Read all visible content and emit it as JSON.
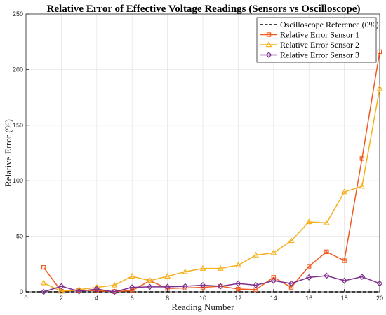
{
  "chart_data": {
    "type": "line",
    "title": "Relative Error of Effective Voltage Readings (Sensors vs Oscilloscope)",
    "xlabel": "Reading Number",
    "ylabel": "Relative Error (%)",
    "xlim": [
      0,
      20
    ],
    "ylim": [
      0,
      250
    ],
    "xticks": [
      0,
      2,
      4,
      6,
      8,
      10,
      12,
      14,
      16,
      18,
      20
    ],
    "yticks": [
      0,
      50,
      100,
      150,
      200,
      250
    ],
    "grid": true,
    "legend_position": "top-right",
    "x": [
      1,
      2,
      3,
      4,
      5,
      6,
      7,
      8,
      9,
      10,
      11,
      12,
      13,
      14,
      15,
      16,
      17,
      18,
      19,
      20
    ],
    "series": [
      {
        "name": "Oscilloscope Reference (0%)",
        "color": "#000000",
        "style": "dashed",
        "marker": "none",
        "x": [
          0,
          20
        ],
        "values": [
          0,
          0
        ]
      },
      {
        "name": "Relative Error Sensor 1",
        "color": "#f05a1e",
        "style": "solid",
        "marker": "square",
        "values": [
          22,
          0.5,
          1.5,
          1,
          0.3,
          1,
          10,
          3,
          3.5,
          4,
          5,
          2.5,
          2,
          13,
          4,
          23,
          36,
          28,
          120,
          216
        ]
      },
      {
        "name": "Relative Error Sensor 2",
        "color": "#f5b11d",
        "style": "solid",
        "marker": "triangle",
        "values": [
          8,
          0.5,
          2,
          4,
          6,
          14,
          10,
          14,
          18,
          21,
          21,
          24,
          33,
          35,
          46,
          63,
          62,
          90,
          95,
          183
        ]
      },
      {
        "name": "Relative Error Sensor 3",
        "color": "#7e2f8e",
        "style": "solid",
        "marker": "diamond",
        "values": [
          0,
          5,
          0.5,
          2.5,
          0,
          4,
          4.5,
          4.5,
          5,
          6,
          5,
          7.5,
          6,
          10,
          7.5,
          13,
          14.5,
          10,
          13.5,
          7.5
        ]
      }
    ]
  }
}
